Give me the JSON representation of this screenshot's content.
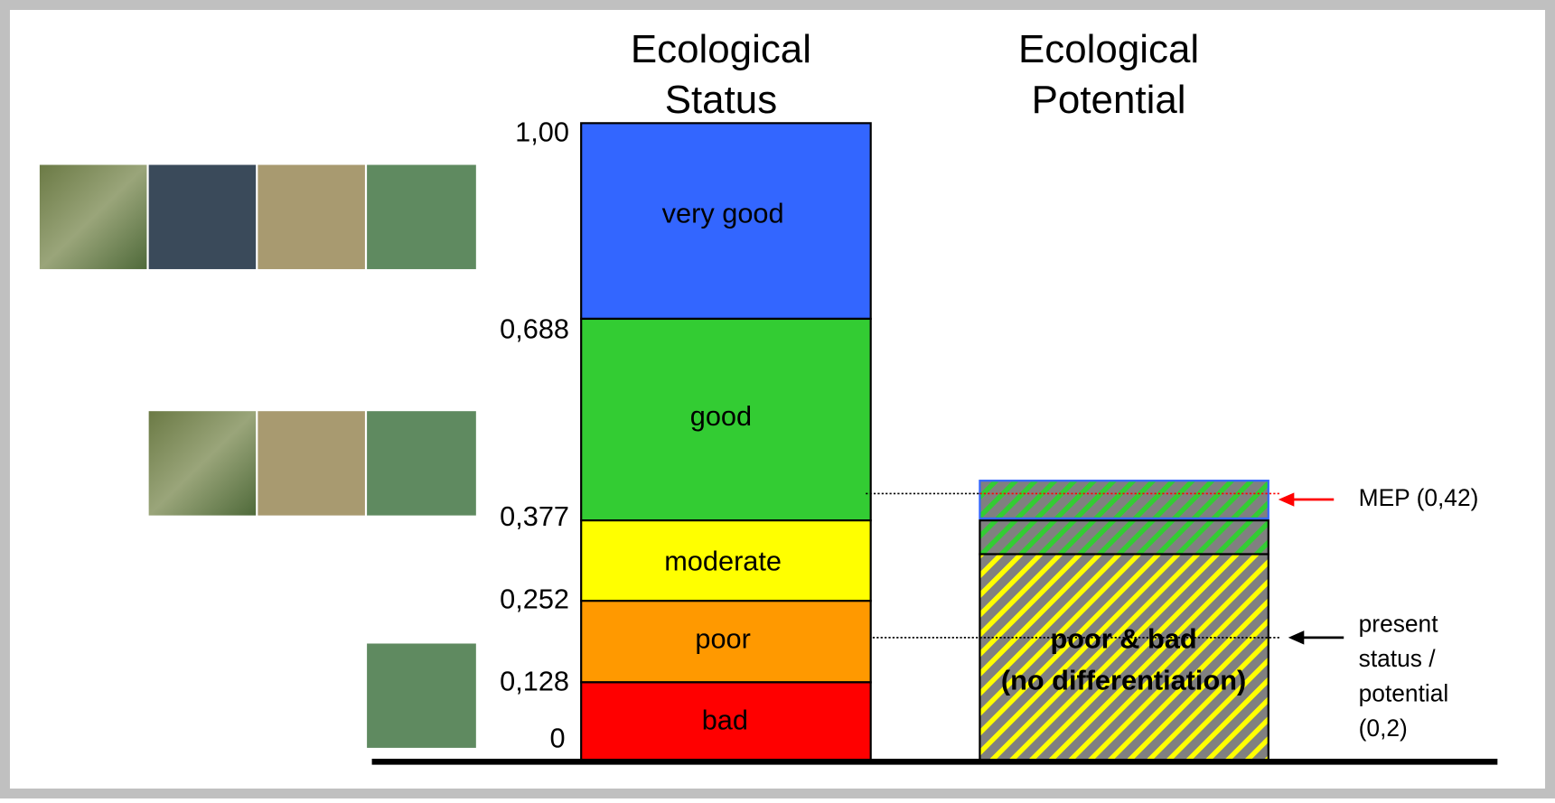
{
  "status_column": {
    "title_lines": [
      "Ecological",
      "Status"
    ],
    "classes": [
      "very good",
      "good",
      "moderate",
      "poor",
      "bad"
    ]
  },
  "scale_labels": [
    "1,00",
    "0,688",
    "0,377",
    "0,252",
    "0,128",
    "0"
  ],
  "potential_column": {
    "title_lines": [
      "Ecological",
      "Potential"
    ],
    "label_lines": [
      "poor & bad",
      "(no differentiation)"
    ]
  },
  "annotations": {
    "mep": "MEP (0,42)",
    "present_lines": [
      "present",
      "status /",
      "potential",
      "(0,2)"
    ]
  }
}
